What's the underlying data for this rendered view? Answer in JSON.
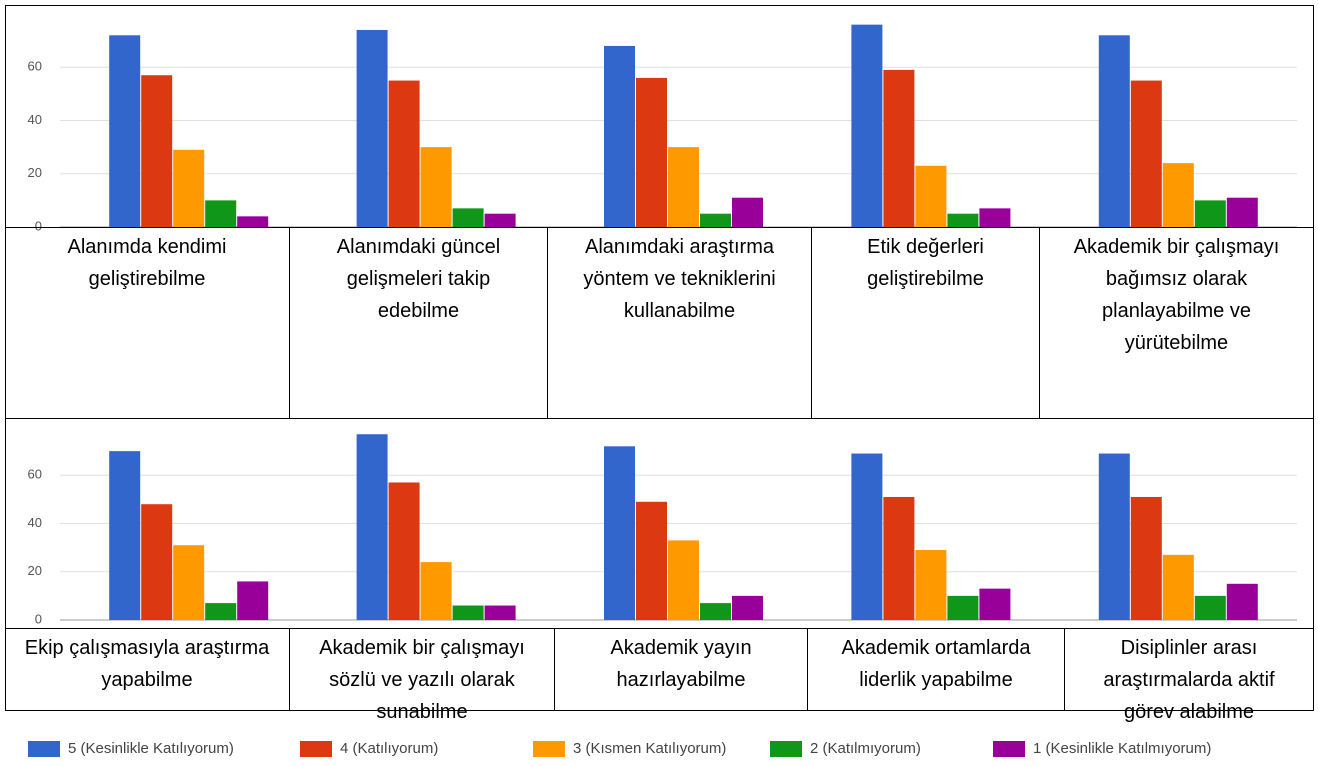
{
  "chart_data": {
    "type": "bar",
    "categories": [
      "Alanımda kendimi geliştirebilme",
      "Alanımdaki güncel gelişmeleri takip edebilme",
      "Alanımdaki araştırma yöntem ve tekniklerini kullanabilme",
      "Etik değerleri geliştirebilme",
      "Akademik bir çalışmayı bağımsız olarak planlayabilme ve yürütebilme",
      "Ekip çalışmasıyla araştırma yapabilme",
      "Akademik bir çalışmayı sözlü ve yazılı olarak sunabilme",
      "Akademik yayın hazırlayabilme",
      "Akademik ortamlarda liderlik yapabilme",
      "Disiplinler arası araştırmalarda aktif görev alabilme"
    ],
    "series": [
      {
        "name": "5 (Kesinlikle Katılıyorum)",
        "color": "#3366cc",
        "values": [
          72,
          74,
          68,
          76,
          72,
          70,
          77,
          72,
          69,
          69
        ]
      },
      {
        "name": "4 (Katılıyorum)",
        "color": "#dc3912",
        "values": [
          57,
          55,
          56,
          59,
          55,
          48,
          57,
          49,
          51,
          51
        ]
      },
      {
        "name": "3 (Kısmen Katılıyorum)",
        "color": "#ff9900",
        "values": [
          29,
          30,
          30,
          23,
          24,
          31,
          24,
          33,
          29,
          27
        ]
      },
      {
        "name": "2 (Katılmıyorum)",
        "color": "#109618",
        "values": [
          10,
          7,
          5,
          5,
          10,
          7,
          6,
          7,
          10,
          10
        ]
      },
      {
        "name": "1 (Kesinlikle Katılmıyorum)",
        "color": "#990099",
        "values": [
          4,
          5,
          11,
          7,
          11,
          16,
          6,
          10,
          13,
          15
        ]
      }
    ],
    "ylim": [
      0,
      80
    ],
    "yticks": [
      0,
      20,
      40,
      60
    ],
    "grid": true
  }
}
